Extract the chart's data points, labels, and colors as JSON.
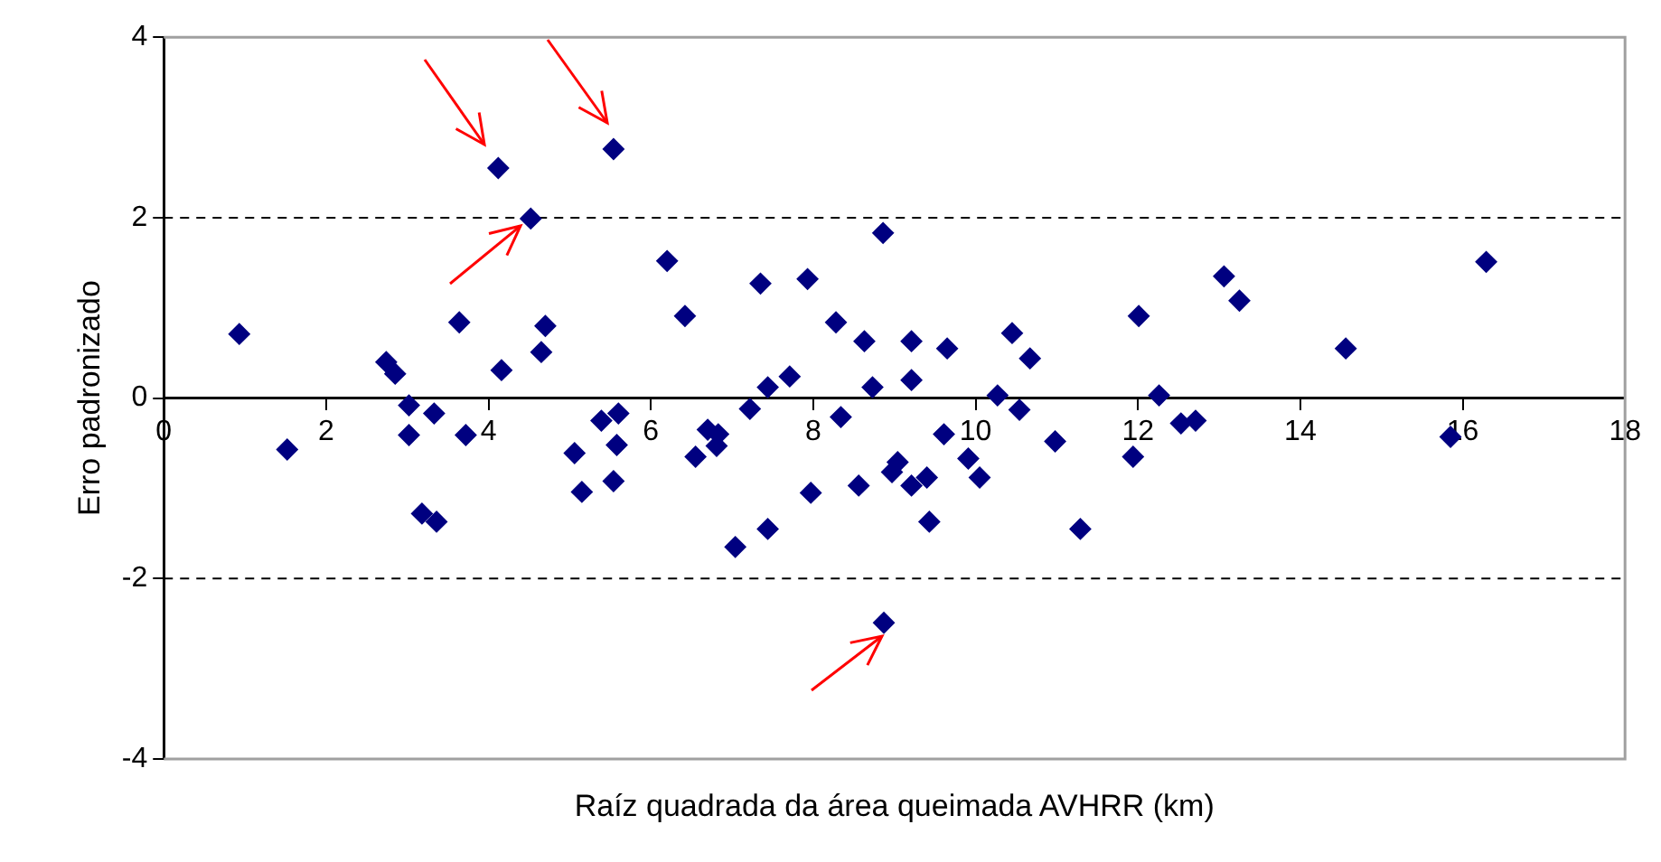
{
  "chart_data": {
    "type": "scatter",
    "xlabel": "Raíz quadrada da área queimada AVHRR (km)",
    "ylabel": "Erro padronizado",
    "x": [
      0.93,
      1.52,
      2.74,
      2.85,
      3.02,
      3.33,
      3.02,
      3.18,
      3.36,
      3.64,
      3.72,
      4.12,
      4.16,
      4.52,
      4.7,
      4.65,
      5.06,
      5.15,
      5.39,
      5.6,
      5.58,
      5.54,
      5.54,
      6.2,
      6.42,
      6.55,
      6.7,
      6.83,
      6.81,
      7.04,
      7.22,
      7.35,
      7.44,
      7.44,
      7.71,
      7.93,
      7.97,
      8.28,
      8.34,
      8.56,
      8.63,
      8.73,
      8.86,
      8.97,
      9.04,
      9.21,
      9.21,
      9.21,
      9.4,
      9.43,
      9.61,
      9.65,
      9.91,
      10.05,
      10.27,
      10.45,
      10.54,
      10.67,
      10.98,
      11.29,
      12.01,
      11.94,
      12.26,
      12.53,
      12.71,
      13.06,
      13.25,
      14.56,
      15.85,
      16.29,
      8.87
    ],
    "values": [
      0.71,
      -0.57,
      0.4,
      0.27,
      -0.08,
      -0.17,
      -0.41,
      -1.28,
      -1.37,
      0.84,
      -0.41,
      2.55,
      0.31,
      1.99,
      0.8,
      0.51,
      -0.61,
      -1.04,
      -0.25,
      -0.17,
      -0.52,
      -0.92,
      2.76,
      1.52,
      0.91,
      -0.65,
      -0.35,
      -0.4,
      -0.53,
      -1.65,
      -0.12,
      1.27,
      0.12,
      -1.45,
      0.24,
      1.32,
      -1.05,
      0.84,
      -0.21,
      -0.97,
      0.63,
      0.12,
      1.83,
      -0.82,
      -0.71,
      0.63,
      0.2,
      -0.97,
      -0.88,
      -1.37,
      -0.4,
      0.55,
      -0.67,
      -0.88,
      0.03,
      0.72,
      -0.13,
      0.44,
      -0.48,
      -1.45,
      0.91,
      -0.65,
      0.03,
      -0.28,
      -0.25,
      1.35,
      1.08,
      0.55,
      -0.43,
      1.51,
      -2.49
    ],
    "color": "#000080",
    "marker": "diamond",
    "xlim": [
      0,
      18
    ],
    "xticks": [
      0,
      2,
      4,
      6,
      8,
      10,
      12,
      14,
      16,
      18
    ],
    "ylim": [
      -4,
      4
    ],
    "yticks": [
      -4,
      -2,
      0,
      2,
      4
    ],
    "grid": false,
    "legend": false,
    "ref_lines": [
      {
        "axis": "y",
        "value": 2,
        "line_style": "dashed",
        "color": "#000000"
      },
      {
        "axis": "y",
        "value": -2,
        "line_style": "dashed",
        "color": "#000000"
      }
    ]
  }
}
